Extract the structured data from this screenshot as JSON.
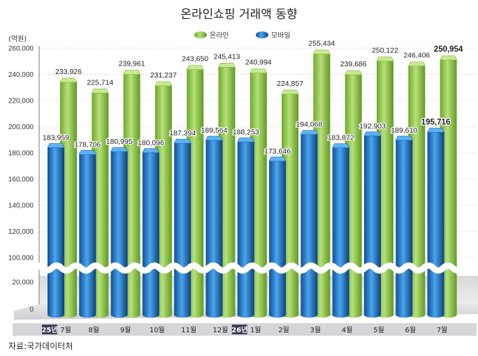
{
  "chart_data": {
    "type": "bar",
    "title": "온라인쇼핑 거래액 동향",
    "unit": "(억원)",
    "categories": [
      {
        "year": "25년",
        "month": "7월"
      },
      {
        "year": "",
        "month": "8월"
      },
      {
        "year": "",
        "month": "9월"
      },
      {
        "year": "",
        "month": "10월"
      },
      {
        "year": "",
        "month": "11월"
      },
      {
        "year": "",
        "month": "12월"
      },
      {
        "year": "26년",
        "month": "1월"
      },
      {
        "year": "",
        "month": "2월"
      },
      {
        "year": "",
        "month": "3월"
      },
      {
        "year": "",
        "month": "4월"
      },
      {
        "year": "",
        "month": "5월"
      },
      {
        "year": "",
        "month": "6월"
      },
      {
        "year": "",
        "month": "7월"
      }
    ],
    "series": [
      {
        "name": "온라인",
        "color": "#8dc63f",
        "values": [
          233926,
          225714,
          239961,
          231237,
          243650,
          245413,
          240994,
          224857,
          255434,
          239686,
          250122,
          246406,
          250954
        ],
        "labels": [
          "233,926",
          "225,714",
          "239,961",
          "231,237",
          "243,650",
          "245,413",
          "240,994",
          "224,857",
          "255,434",
          "239,686",
          "250,122",
          "246,406",
          "250,954"
        ]
      },
      {
        "name": "모바일",
        "color": "#1f77c8",
        "values": [
          183959,
          178706,
          180995,
          180096,
          187394,
          189564,
          188253,
          173646,
          194068,
          183872,
          192903,
          189610,
          195716
        ],
        "labels": [
          "183,959",
          "178,706",
          "180,995",
          "180,096",
          "187,394",
          "189,564",
          "188,253",
          "173,646",
          "194,068",
          "183,872",
          "192,903",
          "189,610",
          "195,716"
        ]
      }
    ],
    "y_ticks": [
      "260,000",
      "240,000",
      "220,000",
      "200,000",
      "180,000",
      "160,000",
      "140,000",
      "120,000",
      "100,000",
      "20,000",
      "0"
    ],
    "y_tick_values": [
      260000,
      240000,
      220000,
      200000,
      180000,
      160000,
      140000,
      120000,
      100000,
      20000,
      0
    ],
    "ylim": [
      0,
      260000
    ],
    "axis_break": [
      20000,
      100000
    ],
    "highlight_last": true
  },
  "source": "자료:국가데이터처"
}
